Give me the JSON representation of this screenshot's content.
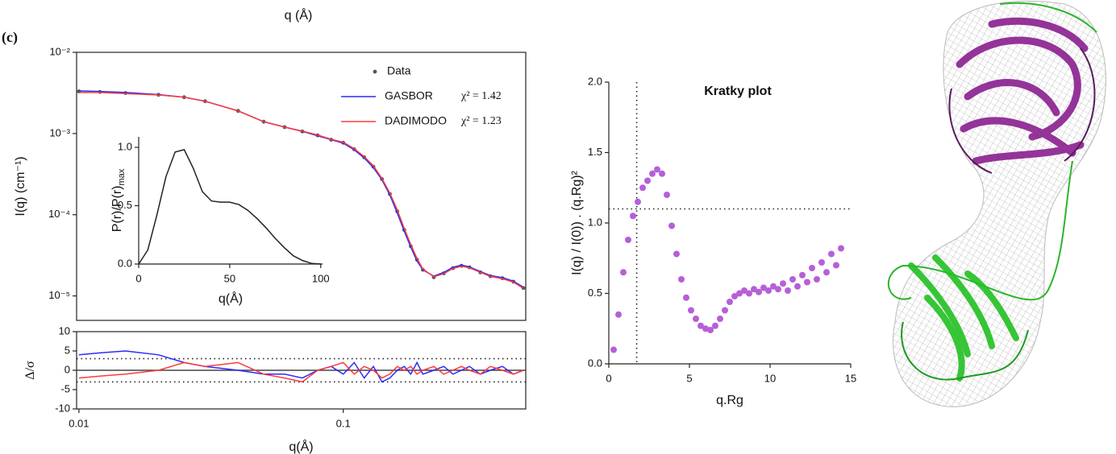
{
  "top_label": "q (Å)",
  "panel_label": "(c)",
  "chart_data": [
    {
      "type": "line",
      "xlog": true,
      "ylog": true,
      "ylabel": "I(q) (cm⁻¹)",
      "xlim": [
        0.0098,
        0.49
      ],
      "ylim": [
        5e-06,
        0.01
      ],
      "yticks": [
        {
          "value": 0.01,
          "label": "10⁻²"
        },
        {
          "value": 0.001,
          "label": "10⁻³"
        },
        {
          "value": 0.0001,
          "label": "10⁻⁴"
        },
        {
          "value": 1e-05,
          "label": "10⁻⁵"
        }
      ],
      "legend": "upper right",
      "x": [
        0.01,
        0.012,
        0.015,
        0.02,
        0.025,
        0.03,
        0.04,
        0.05,
        0.06,
        0.07,
        0.08,
        0.09,
        0.1,
        0.11,
        0.12,
        0.13,
        0.14,
        0.15,
        0.16,
        0.17,
        0.18,
        0.19,
        0.2,
        0.22,
        0.24,
        0.26,
        0.28,
        0.3,
        0.33,
        0.36,
        0.4,
        0.44,
        0.48
      ],
      "series": [
        {
          "name": "Data",
          "color": "#555555",
          "marker": "points",
          "values": [
            0.0033,
            0.00325,
            0.00315,
            0.003,
            0.0028,
            0.0025,
            0.0019,
            0.0014,
            0.0012,
            0.00106,
            0.00095,
            0.00084,
            0.00077,
            0.00064,
            0.00051,
            0.00039,
            0.000275,
            0.00018,
            0.00011,
            6.5e-05,
            4.1e-05,
            2.8e-05,
            2.1e-05,
            1.7e-05,
            1.9e-05,
            2.2e-05,
            2.35e-05,
            2.25e-05,
            1.95e-05,
            1.75e-05,
            1.65e-05,
            1.5e-05,
            1.25e-05
          ]
        },
        {
          "name": "GASBOR",
          "color": "#2a2aff",
          "annotation": "χ² = 1.42",
          "values": [
            0.00335,
            0.0033,
            0.0032,
            0.00302,
            0.0028,
            0.0025,
            0.0019,
            0.0014,
            0.0012,
            0.00106,
            0.00094,
            0.00084,
            0.00076,
            0.00063,
            0.0005,
            0.00038,
            0.00027,
            0.000175,
            0.000105,
            6.3e-05,
            4e-05,
            2.7e-05,
            2.1e-05,
            1.75e-05,
            1.95e-05,
            2.25e-05,
            2.4e-05,
            2.28e-05,
            2e-05,
            1.78e-05,
            1.68e-05,
            1.52e-05,
            1.28e-05
          ]
        },
        {
          "name": "DADIMODO",
          "color": "#ff3b3b",
          "annotation": "χ² = 1.23",
          "values": [
            0.0032,
            0.0032,
            0.0031,
            0.00298,
            0.0028,
            0.0025,
            0.0019,
            0.0014,
            0.0012,
            0.00107,
            0.00096,
            0.00085,
            0.00078,
            0.00065,
            0.00052,
            0.0004,
            0.00028,
            0.000185,
            0.000115,
            6.8e-05,
            4.3e-05,
            2.9e-05,
            2.15e-05,
            1.72e-05,
            1.88e-05,
            2.18e-05,
            2.32e-05,
            2.22e-05,
            1.95e-05,
            1.74e-05,
            1.63e-05,
            1.48e-05,
            1.24e-05
          ]
        }
      ]
    },
    {
      "type": "line",
      "xlabel": "q(Å)",
      "ylabel": "P(r)/P(r)",
      "ylabel_sub": "max",
      "xlim": [
        0,
        101
      ],
      "ylim": [
        0,
        1.09
      ],
      "xticks": [
        0,
        50,
        100
      ],
      "yticks": [
        {
          "value": 0,
          "label": "0.0"
        },
        {
          "value": 0.5,
          "label": "0.5"
        },
        {
          "value": 1,
          "label": "1.0"
        }
      ],
      "x": [
        0,
        5,
        10,
        15,
        20,
        25,
        30,
        35,
        40,
        45,
        50,
        55,
        60,
        65,
        70,
        75,
        80,
        85,
        90,
        95,
        100
      ],
      "series": [
        {
          "color": "#222222",
          "values": [
            0,
            0.12,
            0.42,
            0.75,
            0.96,
            0.98,
            0.82,
            0.62,
            0.54,
            0.53,
            0.53,
            0.51,
            0.46,
            0.39,
            0.31,
            0.22,
            0.14,
            0.07,
            0.03,
            0.005,
            0
          ]
        }
      ]
    },
    {
      "type": "line",
      "xlog": true,
      "xlabel": "q(Å)",
      "ylabel": "Δ/σ",
      "xlim": [
        0.0098,
        0.49
      ],
      "ylim": [
        -10,
        10
      ],
      "xticks": [
        0.01,
        0.1
      ],
      "yticks": [
        -10,
        -5,
        0,
        5,
        10
      ],
      "hlines": [
        3,
        -3
      ],
      "baseline": 0,
      "x": [
        0.01,
        0.012,
        0.015,
        0.02,
        0.025,
        0.03,
        0.04,
        0.05,
        0.06,
        0.07,
        0.08,
        0.09,
        0.1,
        0.11,
        0.12,
        0.13,
        0.14,
        0.15,
        0.16,
        0.17,
        0.18,
        0.19,
        0.2,
        0.22,
        0.24,
        0.26,
        0.28,
        0.3,
        0.33,
        0.36,
        0.4,
        0.44,
        0.48
      ],
      "series": [
        {
          "color": "#2a2aff",
          "values": [
            4,
            4.5,
            5,
            4,
            2,
            1,
            0,
            -1,
            -1,
            -2,
            0,
            1,
            -1,
            2,
            -2,
            1,
            -3,
            -2,
            0,
            1,
            -1,
            2,
            -1,
            0,
            1,
            -1,
            0,
            1,
            -1,
            0,
            1,
            -1,
            0
          ]
        },
        {
          "color": "#ff3b3b",
          "values": [
            -2,
            -1.5,
            -1,
            0,
            2,
            1,
            2,
            -1,
            -2,
            -3,
            0,
            1,
            2,
            -1,
            1,
            0,
            -2,
            -1,
            1,
            0,
            1,
            -1,
            0,
            1,
            -1,
            0,
            1,
            0,
            -1,
            1,
            0,
            -1,
            0
          ]
        }
      ]
    },
    {
      "type": "scatter",
      "title": "Kratky plot",
      "xlabel": "q.Rg",
      "ylabel": "I(q) / I(0)) . (q.Rg)²",
      "xlim": [
        0,
        15
      ],
      "ylim": [
        0,
        2
      ],
      "xticks": [
        0,
        5,
        10,
        15
      ],
      "yticks": [
        {
          "value": 0,
          "label": "0.0"
        },
        {
          "value": 0.5,
          "label": "0.5"
        },
        {
          "value": 1,
          "label": "1.0"
        },
        {
          "value": 1.5,
          "label": "1.5"
        },
        {
          "value": 2,
          "label": "2.0"
        }
      ],
      "vlines": [
        1.73
      ],
      "hlines": [
        1.1
      ],
      "color": "#b65fd8",
      "x": [
        0.3,
        0.6,
        0.9,
        1.2,
        1.5,
        1.8,
        2.1,
        2.4,
        2.7,
        3.0,
        3.3,
        3.6,
        3.9,
        4.2,
        4.5,
        4.8,
        5.1,
        5.4,
        5.7,
        6.0,
        6.3,
        6.6,
        6.9,
        7.2,
        7.5,
        7.8,
        8.1,
        8.4,
        8.7,
        9.0,
        9.3,
        9.6,
        9.9,
        10.2,
        10.5,
        10.8,
        11.1,
        11.4,
        11.7,
        12.0,
        12.3,
        12.6,
        12.9,
        13.2,
        13.5,
        13.8,
        14.1,
        14.4
      ],
      "values": [
        0.1,
        0.35,
        0.65,
        0.88,
        1.05,
        1.15,
        1.25,
        1.3,
        1.35,
        1.38,
        1.35,
        1.2,
        0.98,
        0.78,
        0.6,
        0.47,
        0.38,
        0.32,
        0.27,
        0.25,
        0.24,
        0.27,
        0.32,
        0.38,
        0.44,
        0.48,
        0.5,
        0.52,
        0.5,
        0.53,
        0.51,
        0.54,
        0.52,
        0.55,
        0.53,
        0.57,
        0.52,
        0.6,
        0.55,
        0.63,
        0.58,
        0.68,
        0.6,
        0.72,
        0.65,
        0.78,
        0.7,
        0.82
      ]
    }
  ]
}
